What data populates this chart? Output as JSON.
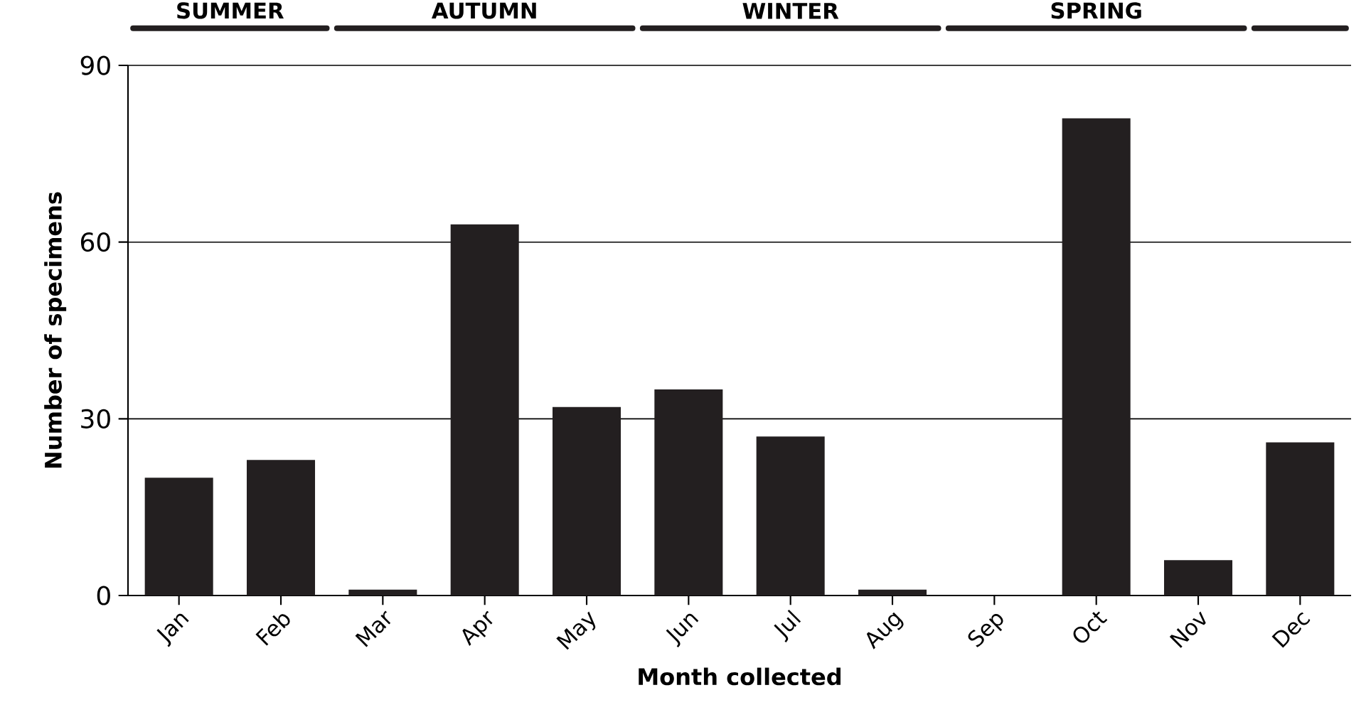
{
  "chart_data": {
    "type": "bar",
    "xlabel": "Month collected",
    "ylabel": "Number of specimens",
    "categories": [
      "Jan",
      "Feb",
      "Mar",
      "Apr",
      "May",
      "Jun",
      "Jul",
      "Aug",
      "Sep",
      "Oct",
      "Nov",
      "Dec"
    ],
    "values": [
      20,
      23,
      1,
      63,
      32,
      35,
      27,
      1,
      0,
      81,
      6,
      26
    ],
    "color": "#231f20",
    "ylim": [
      0,
      90
    ],
    "yticks": [
      0,
      30,
      60,
      90
    ],
    "grid": "y",
    "annotations": [
      "SUMMER",
      "AUTUMN",
      "WINTER",
      "SPRING"
    ]
  }
}
